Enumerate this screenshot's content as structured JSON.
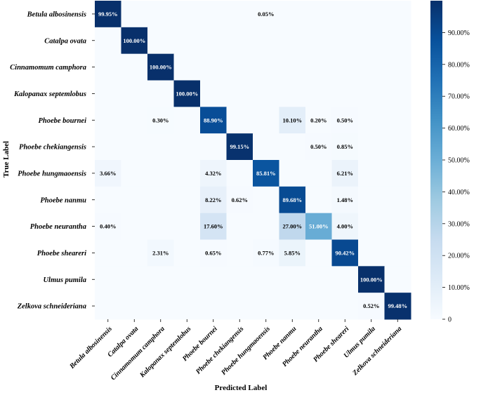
{
  "chart_data": {
    "type": "heatmap",
    "xlabel": "Predicted Label",
    "ylabel": "True Label",
    "categories": [
      "Betula albosinensis",
      "Catalpa ovata",
      "Cinnamomum camphora",
      "Kalopanax septemlobus",
      "Phoebe bournei",
      "Phoebe chekiangensis",
      "Phoebe hungmaoensis",
      "Phoebe nanmu",
      "Phoebe neurantha",
      "Phoebe sheareri",
      "Ulmus pumila",
      "Zelkova schneideriana"
    ],
    "values": [
      [
        99.95,
        0,
        0,
        0,
        0,
        0,
        0.05,
        0,
        0,
        0,
        0,
        0
      ],
      [
        0,
        100.0,
        0,
        0,
        0,
        0,
        0,
        0,
        0,
        0,
        0,
        0
      ],
      [
        0,
        0,
        100.0,
        0,
        0,
        0,
        0,
        0,
        0,
        0,
        0,
        0
      ],
      [
        0,
        0,
        0,
        100.0,
        0,
        0,
        0,
        0,
        0,
        0,
        0,
        0
      ],
      [
        0,
        0,
        0.3,
        0,
        88.9,
        0,
        0,
        10.1,
        0.2,
        0.5,
        0,
        0
      ],
      [
        0,
        0,
        0,
        0,
        0,
        99.15,
        0,
        0,
        0.5,
        0.85,
        0,
        0
      ],
      [
        3.66,
        0,
        0,
        0,
        4.32,
        0,
        85.81,
        0,
        0,
        6.21,
        0,
        0
      ],
      [
        0,
        0,
        0,
        0,
        8.22,
        0.62,
        0,
        89.68,
        0,
        1.48,
        0,
        0
      ],
      [
        0.4,
        0,
        0,
        0,
        17.6,
        0,
        0,
        27.0,
        51.0,
        4.0,
        0,
        0
      ],
      [
        0,
        0,
        2.31,
        0,
        0.65,
        0,
        0.77,
        5.85,
        0,
        90.42,
        0,
        0
      ],
      [
        0,
        0,
        0,
        0,
        0,
        0,
        0,
        0,
        0,
        0,
        100.0,
        0
      ],
      [
        0,
        0,
        0,
        0,
        0,
        0,
        0,
        0,
        0,
        0,
        0.52,
        99.48
      ]
    ],
    "colorbar": {
      "range": [
        0,
        100
      ],
      "ticks": [
        "0",
        "10.00%",
        "20.00%",
        "30.00%",
        "40.00%",
        "50.00%",
        "60.00%",
        "70.00%",
        "80.00%",
        "90.00%"
      ],
      "colormap": "Blues",
      "low_color": "#f7fbff",
      "high_color": "#08306b"
    }
  }
}
